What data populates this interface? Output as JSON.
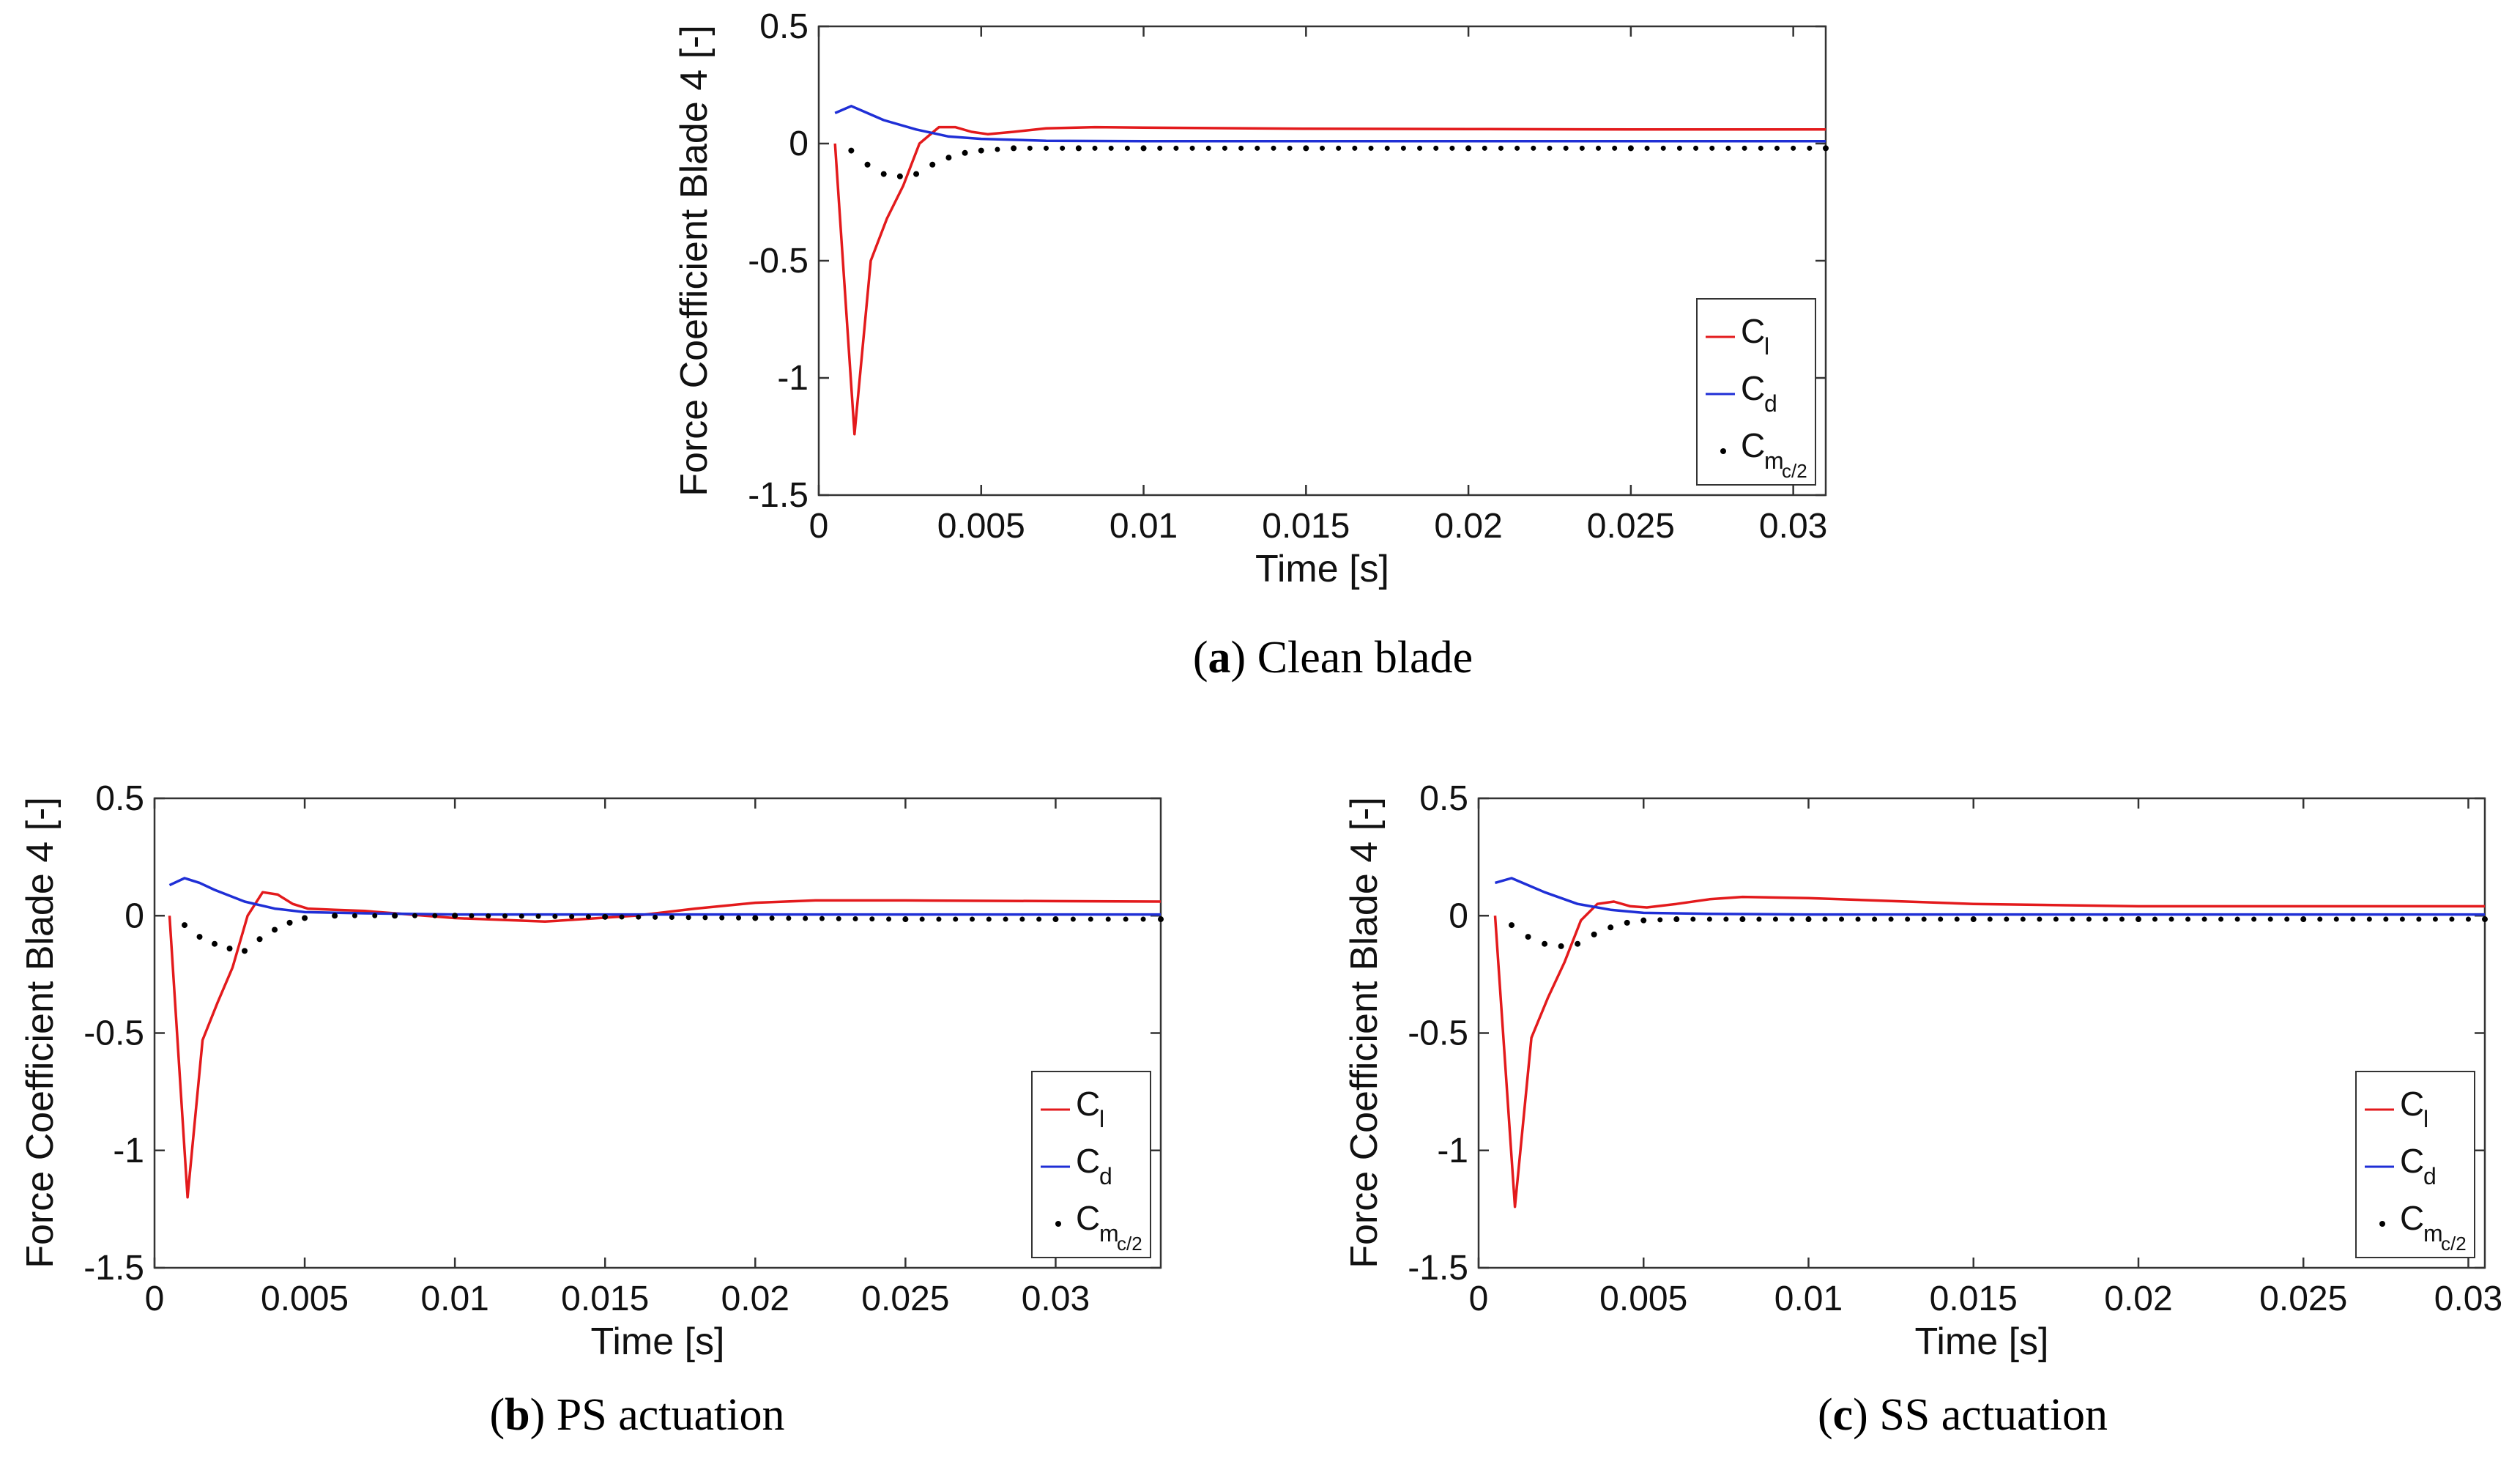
{
  "chart_data": [
    {
      "type": "line",
      "ylabel": "Force Coefficient Blade 4  [-]",
      "xlabel": "Time  [s]",
      "caption_letter": "a",
      "caption_text": "Clean blade",
      "xlim": [
        0,
        0.031
      ],
      "ylim": [
        -1.5,
        0.5
      ],
      "xticks": [
        "0",
        "0.005",
        "0.01",
        "0.015",
        "0.02",
        "0.025",
        "0.03"
      ],
      "yticks": [
        "0.5",
        "0",
        "-0.5",
        "-1",
        "-1.5"
      ],
      "legend": {
        "cl": "C",
        "cl_sub": "l",
        "cd": "C",
        "cd_sub": "d",
        "cm": "C",
        "cm_sub": "m",
        "cm_subsub": "c/2"
      },
      "series": [
        {
          "name": "Cl",
          "color": "#e31a1c",
          "style": "solid",
          "x": [
            0.0005,
            0.0011,
            0.0016,
            0.0021,
            0.0026,
            0.0031,
            0.0037,
            0.0042,
            0.0047,
            0.0052,
            0.006,
            0.007,
            0.0085,
            0.01,
            0.015,
            0.02,
            0.025,
            0.031
          ],
          "y": [
            0.0,
            -1.24,
            -0.5,
            -0.32,
            -0.18,
            0.0,
            0.07,
            0.07,
            0.05,
            0.04,
            0.05,
            0.065,
            0.07,
            0.068,
            0.063,
            0.062,
            0.06,
            0.06
          ]
        },
        {
          "name": "Cd",
          "color": "#1f2fd6",
          "style": "solid",
          "x": [
            0.0005,
            0.001,
            0.0015,
            0.002,
            0.003,
            0.004,
            0.005,
            0.007,
            0.01,
            0.015,
            0.02,
            0.025,
            0.031
          ],
          "y": [
            0.13,
            0.16,
            0.13,
            0.1,
            0.06,
            0.03,
            0.02,
            0.012,
            0.01,
            0.01,
            0.01,
            0.01,
            0.01
          ]
        },
        {
          "name": "Cm",
          "color": "#000000",
          "style": "dotted",
          "x": [
            0.001,
            0.0015,
            0.002,
            0.0025,
            0.003,
            0.0035,
            0.004,
            0.0045,
            0.005,
            0.006,
            0.008,
            0.01,
            0.015,
            0.02,
            0.025,
            0.031
          ],
          "y": [
            -0.03,
            -0.09,
            -0.13,
            -0.14,
            -0.13,
            -0.09,
            -0.06,
            -0.04,
            -0.03,
            -0.02,
            -0.02,
            -0.02,
            -0.02,
            -0.02,
            -0.02,
            -0.02
          ]
        }
      ]
    },
    {
      "type": "line",
      "ylabel": "Force Coefficient Blade 4 [-]",
      "xlabel": "Time [s]",
      "caption_letter": "b",
      "caption_text": "PS actuation",
      "xlim": [
        0,
        0.0335
      ],
      "ylim": [
        -1.5,
        0.5
      ],
      "xticks": [
        "0",
        "0.005",
        "0.01",
        "0.015",
        "0.02",
        "0.025",
        "0.03"
      ],
      "yticks": [
        "0.5",
        "0",
        "-0.5",
        "-1",
        "-1.5"
      ],
      "legend": {
        "cl": "C",
        "cl_sub": "l",
        "cd": "C",
        "cd_sub": "d",
        "cm": "C",
        "cm_sub": "m",
        "cm_subsub": "c/2"
      },
      "series": [
        {
          "name": "Cl",
          "color": "#e31a1c",
          "style": "solid",
          "x": [
            0.0005,
            0.0011,
            0.0016,
            0.0021,
            0.0026,
            0.0031,
            0.0036,
            0.0041,
            0.0046,
            0.0051,
            0.006,
            0.007,
            0.008,
            0.01,
            0.013,
            0.016,
            0.018,
            0.02,
            0.022,
            0.025,
            0.03,
            0.0335
          ],
          "y": [
            0.0,
            -1.2,
            -0.53,
            -0.37,
            -0.22,
            0.0,
            0.1,
            0.09,
            0.05,
            0.03,
            0.025,
            0.02,
            0.01,
            -0.01,
            -0.025,
            0.0,
            0.03,
            0.055,
            0.065,
            0.065,
            0.062,
            0.06
          ]
        },
        {
          "name": "Cd",
          "color": "#1f2fd6",
          "style": "solid",
          "x": [
            0.0005,
            0.001,
            0.0015,
            0.002,
            0.003,
            0.004,
            0.005,
            0.007,
            0.01,
            0.015,
            0.02,
            0.025,
            0.03,
            0.0335
          ],
          "y": [
            0.13,
            0.16,
            0.14,
            0.11,
            0.06,
            0.03,
            0.015,
            0.01,
            0.005,
            0.005,
            0.005,
            0.005,
            0.005,
            0.005
          ]
        },
        {
          "name": "Cm",
          "color": "#000000",
          "style": "dotted",
          "x": [
            0.001,
            0.0015,
            0.002,
            0.0025,
            0.003,
            0.0035,
            0.004,
            0.0045,
            0.005,
            0.006,
            0.008,
            0.01,
            0.015,
            0.02,
            0.025,
            0.03,
            0.0335
          ],
          "y": [
            -0.04,
            -0.09,
            -0.12,
            -0.14,
            -0.15,
            -0.1,
            -0.06,
            -0.03,
            -0.01,
            0.0,
            0.0,
            0.0,
            -0.005,
            -0.01,
            -0.015,
            -0.015,
            -0.015
          ]
        }
      ]
    },
    {
      "type": "line",
      "ylabel": "Force Coefficient Blade 4 [-]",
      "xlabel": "Time [s]",
      "caption_letter": "c",
      "caption_text": "SS actuation",
      "xlim": [
        0,
        0.0305
      ],
      "ylim": [
        -1.5,
        0.5
      ],
      "xticks": [
        "0",
        "0.005",
        "0.01",
        "0.015",
        "0.02",
        "0.025",
        "0.03"
      ],
      "yticks": [
        "0.5",
        "0",
        "-0.5",
        "-1",
        "-1.5"
      ],
      "legend": {
        "cl": "C",
        "cl_sub": "l",
        "cd": "C",
        "cd_sub": "d",
        "cm": "C",
        "cm_sub": "m",
        "cm_subsub": "c/2"
      },
      "series": [
        {
          "name": "Cl",
          "color": "#e31a1c",
          "style": "solid",
          "x": [
            0.0005,
            0.0011,
            0.0016,
            0.0021,
            0.0026,
            0.0031,
            0.0036,
            0.0041,
            0.0046,
            0.0051,
            0.006,
            0.007,
            0.008,
            0.01,
            0.015,
            0.02,
            0.025,
            0.0305
          ],
          "y": [
            0.0,
            -1.24,
            -0.52,
            -0.35,
            -0.2,
            -0.02,
            0.05,
            0.06,
            0.04,
            0.035,
            0.05,
            0.07,
            0.08,
            0.075,
            0.05,
            0.04,
            0.04,
            0.04
          ]
        },
        {
          "name": "Cd",
          "color": "#1f2fd6",
          "style": "solid",
          "x": [
            0.0005,
            0.001,
            0.0015,
            0.002,
            0.003,
            0.004,
            0.005,
            0.007,
            0.01,
            0.015,
            0.02,
            0.025,
            0.0305
          ],
          "y": [
            0.14,
            0.16,
            0.13,
            0.1,
            0.05,
            0.025,
            0.012,
            0.008,
            0.005,
            0.005,
            0.005,
            0.005,
            0.005
          ]
        },
        {
          "name": "Cm",
          "color": "#000000",
          "style": "dotted",
          "x": [
            0.001,
            0.0015,
            0.002,
            0.0025,
            0.003,
            0.0035,
            0.004,
            0.0045,
            0.005,
            0.006,
            0.008,
            0.01,
            0.015,
            0.02,
            0.025,
            0.0305
          ],
          "y": [
            -0.04,
            -0.09,
            -0.12,
            -0.13,
            -0.12,
            -0.08,
            -0.05,
            -0.03,
            -0.02,
            -0.015,
            -0.015,
            -0.015,
            -0.015,
            -0.015,
            -0.015,
            -0.015
          ]
        }
      ]
    }
  ]
}
